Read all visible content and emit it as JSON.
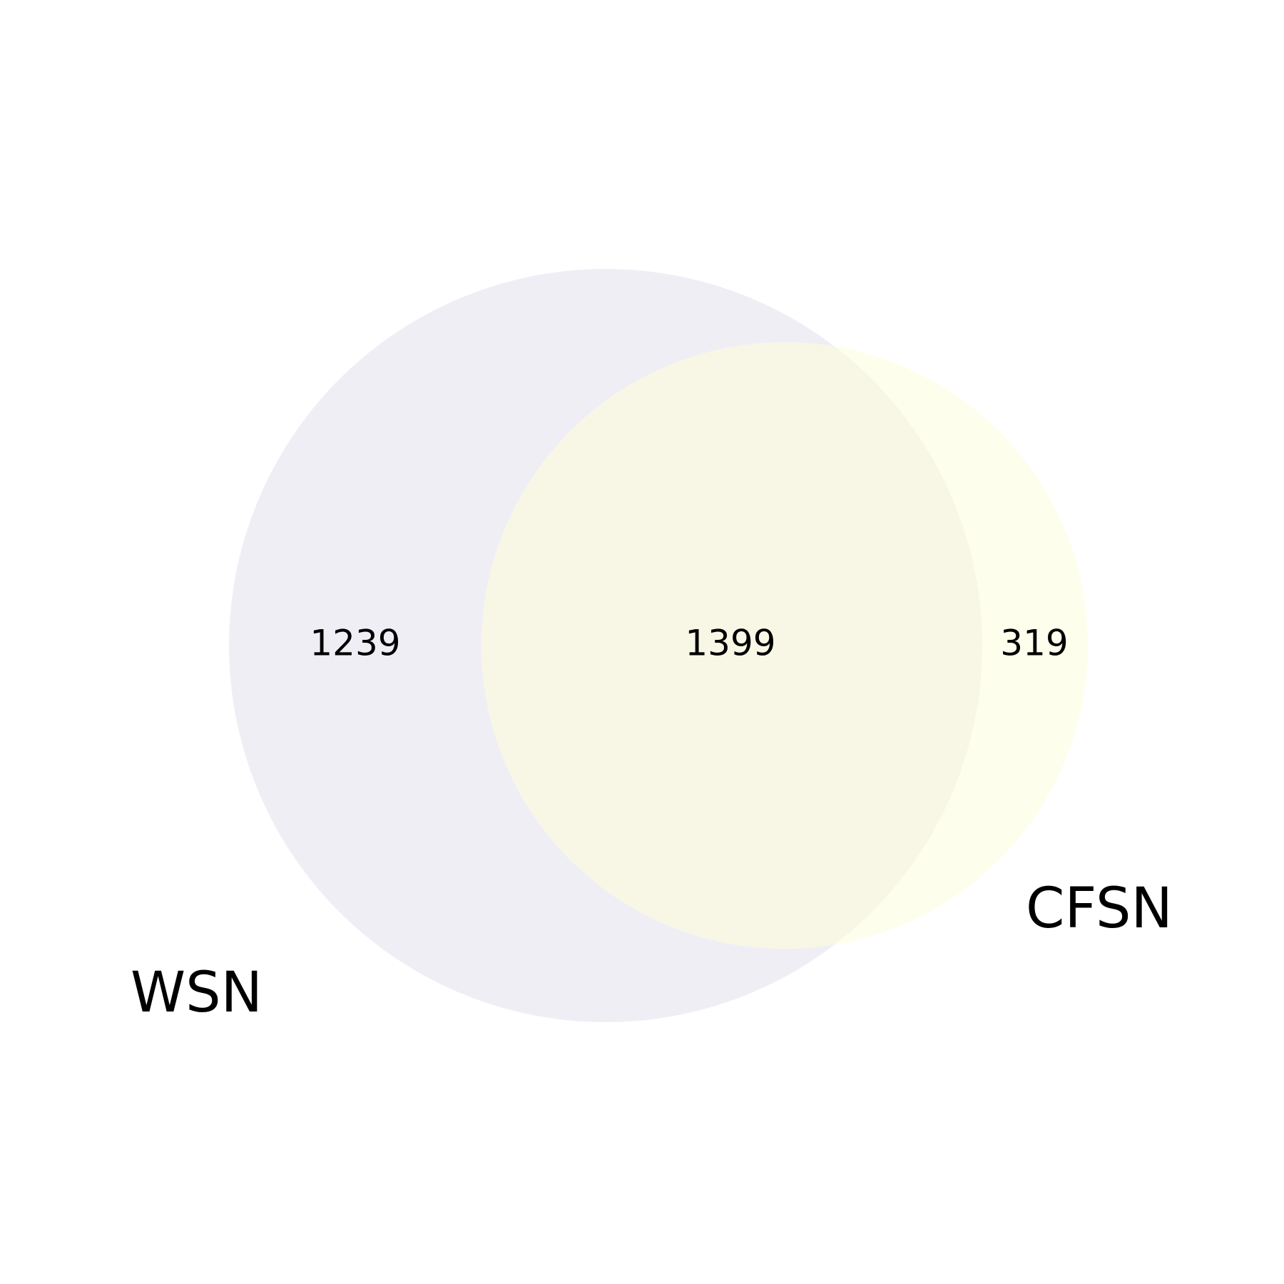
{
  "venn": {
    "sets": [
      {
        "name": "WSN",
        "color": "#f0eef5"
      },
      {
        "name": "CFSN",
        "color": "#fefeec"
      }
    ],
    "intersection_color": "#f8f7e6",
    "counts": {
      "wsn_only": "1239",
      "both": "1399",
      "cfsn_only": "319"
    }
  }
}
